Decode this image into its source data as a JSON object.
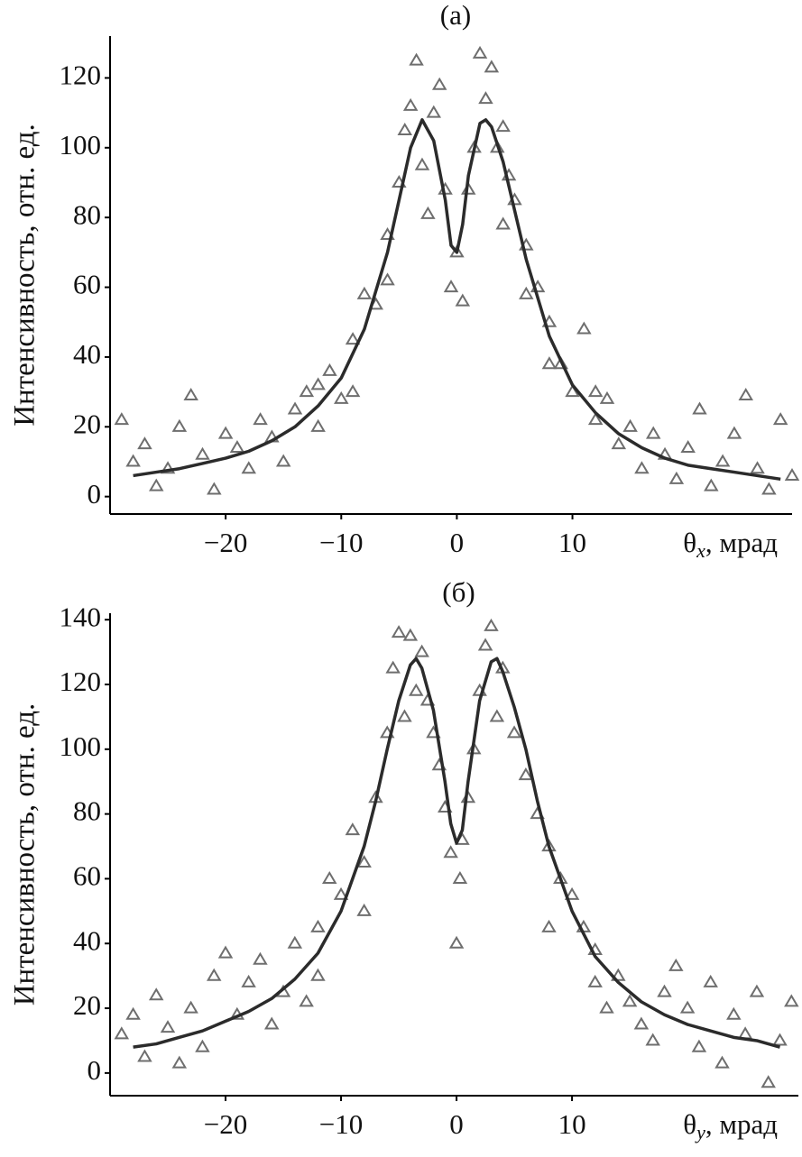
{
  "chart_data": [
    {
      "type": "scatter",
      "title": "(a)",
      "ylabel": "Интенсивность, отн. ед.",
      "xlabel": [
        "θ",
        "x",
        ", мрад"
      ],
      "xlim": [
        -30,
        29
      ],
      "ylim": [
        -5,
        132
      ],
      "xticks": [
        {
          "value": -20,
          "label": "−20"
        },
        {
          "value": -10,
          "label": "−10"
        },
        0,
        10
      ],
      "yticks": [
        0,
        20,
        40,
        60,
        80,
        100,
        120
      ],
      "series": [
        {
          "marker": "triangle",
          "color": "#6e6e6e",
          "x": [
            -29,
            -28,
            -27,
            -26,
            -25,
            -24,
            -23,
            -22,
            -21,
            -20,
            -19,
            -18,
            -17,
            -16,
            -15,
            -14,
            -13,
            -12,
            -11,
            -10,
            -9,
            -8,
            -7,
            -6,
            -5,
            -4.5,
            -4,
            -3.5,
            -3,
            -2.5,
            -2,
            -1.5,
            -1,
            -0.5,
            0,
            0.5,
            1,
            1.5,
            2,
            2.5,
            3,
            3.5,
            4,
            4.5,
            5,
            6,
            7,
            8,
            9,
            10,
            11,
            12,
            13,
            14,
            15,
            16,
            17,
            18,
            19,
            20,
            21,
            22,
            23,
            24,
            25,
            26,
            27,
            28,
            29,
            -9,
            -6,
            6,
            8,
            -12,
            12,
            4
          ],
          "values": [
            22,
            10,
            15,
            3,
            8,
            20,
            29,
            12,
            2,
            18,
            14,
            8,
            22,
            17,
            10,
            25,
            30,
            20,
            36,
            28,
            45,
            58,
            55,
            75,
            90,
            105,
            112,
            125,
            95,
            81,
            110,
            118,
            88,
            60,
            70,
            56,
            88,
            100,
            127,
            114,
            123,
            100,
            106,
            92,
            85,
            72,
            60,
            50,
            38,
            30,
            48,
            22,
            28,
            15,
            20,
            8,
            18,
            12,
            5,
            14,
            25,
            3,
            10,
            18,
            29,
            8,
            2,
            22,
            6,
            30,
            62,
            58,
            38,
            32,
            30,
            78
          ]
        },
        {
          "marker": "line",
          "color": "#2b2b2b",
          "x": [
            -28,
            -26,
            -24,
            -22,
            -20,
            -18,
            -16,
            -14,
            -12,
            -10,
            -8,
            -6,
            -5,
            -4,
            -3,
            -2,
            -1,
            -0.5,
            0,
            0.5,
            1,
            2,
            2.5,
            3,
            4,
            5,
            6,
            8,
            10,
            12,
            14,
            16,
            18,
            20,
            22,
            24,
            26,
            28
          ],
          "values": [
            6,
            7,
            8,
            9.5,
            11,
            13,
            16,
            20,
            26,
            34,
            48,
            70,
            85,
            100,
            108,
            102,
            85,
            72,
            70,
            78,
            92,
            107,
            108,
            106,
            96,
            82,
            68,
            46,
            32,
            24,
            18,
            14,
            11,
            9,
            8,
            7,
            6,
            5
          ]
        }
      ]
    },
    {
      "type": "scatter",
      "title": "(б)",
      "ylabel": "Интенсивность, отн. ед.",
      "xlabel": [
        "θ",
        "y",
        ", мрад"
      ],
      "xlim": [
        -30,
        29.6
      ],
      "ylim": [
        -7,
        142
      ],
      "xticks": [
        {
          "value": -20,
          "label": "−20"
        },
        {
          "value": -10,
          "label": "−10"
        },
        0,
        10
      ],
      "yticks": [
        0,
        20,
        40,
        60,
        80,
        100,
        120,
        140
      ],
      "series": [
        {
          "marker": "triangle",
          "color": "#6e6e6e",
          "x": [
            -29,
            -28,
            -27,
            -26,
            -25,
            -24,
            -23,
            -22,
            -21,
            -20,
            -19,
            -18,
            -17,
            -16,
            -15,
            -14,
            -13,
            -12,
            -11,
            -10,
            -9,
            -8,
            -7,
            -6,
            -5.5,
            -5,
            -4.5,
            -4,
            -3.5,
            -3,
            -2.5,
            -2,
            -1.5,
            -1,
            -0.5,
            0,
            0.3,
            0.5,
            1,
            1.5,
            2,
            2.5,
            3,
            3.5,
            4,
            5,
            6,
            7,
            8,
            9,
            10,
            11,
            12,
            13,
            14,
            15,
            16,
            17,
            18,
            19,
            20,
            21,
            22,
            23,
            24,
            25,
            26,
            27,
            28,
            29,
            -8,
            8,
            -12,
            12
          ],
          "values": [
            12,
            18,
            5,
            24,
            14,
            3,
            20,
            8,
            30,
            37,
            18,
            28,
            35,
            15,
            25,
            40,
            22,
            45,
            60,
            55,
            75,
            65,
            85,
            105,
            125,
            136,
            110,
            135,
            118,
            130,
            115,
            105,
            95,
            82,
            68,
            40,
            60,
            72,
            85,
            100,
            118,
            132,
            138,
            110,
            125,
            105,
            92,
            80,
            70,
            60,
            55,
            45,
            38,
            20,
            30,
            22,
            15,
            10,
            25,
            33,
            20,
            8,
            28,
            3,
            18,
            12,
            25,
            -3,
            10,
            22,
            50,
            45,
            30,
            28
          ]
        },
        {
          "marker": "line",
          "color": "#2b2b2b",
          "x": [
            -28,
            -26,
            -24,
            -22,
            -20,
            -18,
            -16,
            -14,
            -12,
            -10,
            -8,
            -7,
            -6,
            -5,
            -4,
            -3.5,
            -3,
            -2,
            -1,
            -0.5,
            0,
            0.5,
            1,
            2,
            3,
            3.5,
            4,
            5,
            6,
            7,
            8,
            10,
            12,
            14,
            16,
            18,
            20,
            22,
            24,
            26,
            28
          ],
          "values": [
            8,
            9,
            11,
            13,
            16,
            19,
            23,
            29,
            37,
            50,
            70,
            84,
            100,
            115,
            126,
            128,
            125,
            112,
            90,
            77,
            71,
            75,
            90,
            115,
            127,
            128,
            124,
            113,
            100,
            84,
            70,
            50,
            36,
            28,
            22,
            18,
            15,
            13,
            11,
            10,
            8
          ]
        }
      ]
    }
  ]
}
